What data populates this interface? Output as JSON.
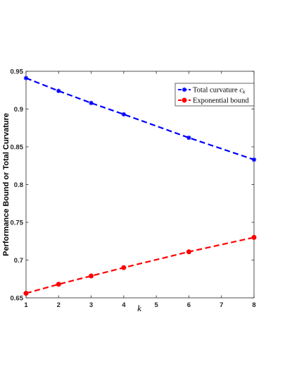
{
  "chart_data": {
    "type": "line",
    "title": "",
    "xlabel": "k",
    "ylabel": "Performance Bound or Total Curvature",
    "xlim": [
      1,
      8
    ],
    "ylim": [
      0.65,
      0.95
    ],
    "xticks": [
      1,
      2,
      3,
      4,
      5,
      6,
      7,
      8
    ],
    "yticks": [
      0.65,
      0.7,
      0.75,
      0.8,
      0.85,
      0.9,
      0.95
    ],
    "ytick_labels": [
      "0.65",
      "0.7",
      "0.75",
      "0.8",
      "0.85",
      "0.9",
      "0.95"
    ],
    "grid": false,
    "legend_position": "top-right",
    "series": [
      {
        "name": "Total curvature c_k",
        "legend_text": "Total curvature ",
        "legend_math": "c",
        "legend_sub": "k",
        "color": "#0000ff",
        "marker": "asterisk",
        "linestyle": "dashed",
        "x": [
          1,
          2,
          3,
          4,
          6,
          8
        ],
        "y": [
          0.941,
          0.924,
          0.908,
          0.893,
          0.862,
          0.833
        ]
      },
      {
        "name": "Exponential bound",
        "legend_text": "Exponential bound",
        "color": "#ff0000",
        "marker": "circle",
        "linestyle": "dashed",
        "x": [
          1,
          2,
          3,
          4,
          6,
          8
        ],
        "y": [
          0.656,
          0.668,
          0.679,
          0.69,
          0.711,
          0.73
        ]
      }
    ]
  }
}
